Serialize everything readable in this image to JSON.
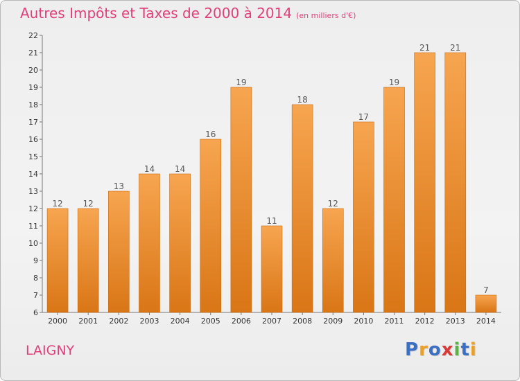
{
  "title": "Autres Impôts et Taxes de 2000 à 2014",
  "unit_note": "(en milliers d'€)",
  "commune": "LAIGNY",
  "logo": {
    "letters": [
      "P",
      "r",
      "o",
      "x",
      "i",
      "t",
      "i"
    ],
    "colors": [
      "#3a6fc4",
      "#e8a02a",
      "#3a6fc4",
      "#d83a3a",
      "#5bb04a",
      "#3a6fc4",
      "#e8a02a"
    ]
  },
  "colors": {
    "bar_top": "#f7a550",
    "bar_bottom": "#d97616",
    "title": "#e0407a"
  },
  "chart_data": {
    "type": "bar",
    "categories": [
      "2000",
      "2001",
      "2002",
      "2003",
      "2004",
      "2005",
      "2006",
      "2007",
      "2008",
      "2009",
      "2010",
      "2011",
      "2012",
      "2013",
      "2014"
    ],
    "values": [
      12,
      12,
      13,
      14,
      14,
      16,
      19,
      11,
      18,
      12,
      17,
      19,
      21,
      21,
      7
    ],
    "ylim": [
      6,
      22
    ],
    "yticks": [
      6,
      7,
      8,
      9,
      10,
      11,
      12,
      13,
      14,
      15,
      16,
      17,
      18,
      19,
      20,
      21,
      22
    ],
    "grid": false,
    "data_labels": true
  }
}
